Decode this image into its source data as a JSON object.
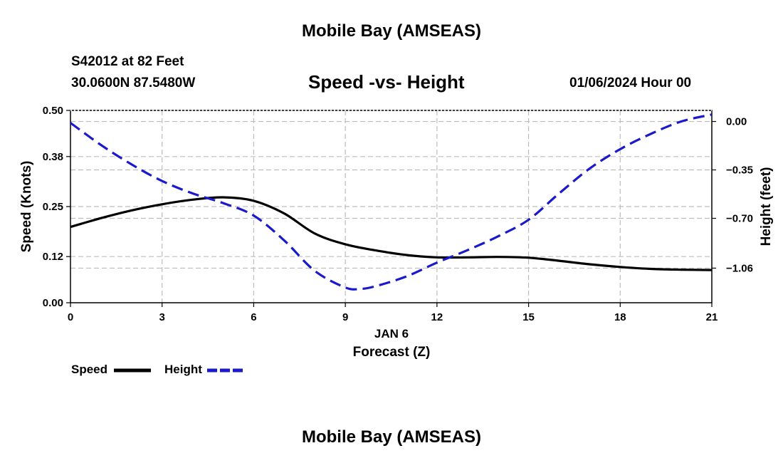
{
  "header": {
    "title": "Mobile Bay (AMSEAS)",
    "station": "S42012 at 82 Feet",
    "coords": "30.0600N  87.5480W",
    "subtitle": "Speed -vs- Height",
    "date": "01/06/2024 Hour 00"
  },
  "footer": {
    "title": "Mobile Bay (AMSEAS)"
  },
  "legend": {
    "speed": "Speed",
    "height": "Height"
  },
  "colors": {
    "speed": "#000000",
    "height": "#1a1acc",
    "grid": "#bdbdbd"
  },
  "chart_data": {
    "type": "line",
    "title": "Speed -vs- Height",
    "xlabel": "Forecast (Z)",
    "xlabel_date": "JAN 6",
    "ylabel": "Speed (Knots)",
    "y2label": "Height (feet)",
    "xlim": [
      0,
      21
    ],
    "ylim": [
      0,
      0.5
    ],
    "y2lim": [
      -1.31,
      0.08
    ],
    "xticks": [
      0,
      3,
      6,
      9,
      12,
      15,
      18,
      21
    ],
    "yticks": [
      0.0,
      0.12,
      0.25,
      0.38,
      0.5
    ],
    "ytick_labels": [
      "0.00",
      "0.12",
      "0.25",
      "0.38",
      "0.50"
    ],
    "y2ticks": [
      0.0,
      -0.35,
      -0.7,
      -1.06
    ],
    "y2tick_labels": [
      "0.00",
      "−0.35",
      "−0.70",
      "−1.06"
    ],
    "grid": true,
    "series": [
      {
        "name": "Speed",
        "axis": "left",
        "style": "solid",
        "x": [
          0,
          1,
          2,
          3,
          4,
          5,
          6,
          7,
          8,
          9,
          10,
          11,
          12,
          13,
          14,
          15,
          16,
          17,
          18,
          19,
          20,
          21
        ],
        "values": [
          0.197,
          0.22,
          0.24,
          0.256,
          0.268,
          0.274,
          0.265,
          0.232,
          0.18,
          0.152,
          0.136,
          0.124,
          0.118,
          0.118,
          0.119,
          0.117,
          0.109,
          0.1,
          0.093,
          0.088,
          0.086,
          0.085
        ]
      },
      {
        "name": "Height",
        "axis": "right",
        "style": "dashed",
        "x": [
          0,
          1,
          2,
          3,
          4,
          5,
          6,
          7,
          8,
          9,
          9.5,
          10,
          11,
          12,
          13,
          14,
          15,
          16,
          17,
          18,
          19,
          20,
          21
        ],
        "values": [
          -0.01,
          -0.17,
          -0.31,
          -0.43,
          -0.52,
          -0.59,
          -0.68,
          -0.86,
          -1.08,
          -1.2,
          -1.21,
          -1.19,
          -1.12,
          -1.02,
          -0.93,
          -0.83,
          -0.71,
          -0.52,
          -0.34,
          -0.2,
          -0.09,
          0.0,
          0.05
        ]
      }
    ]
  }
}
